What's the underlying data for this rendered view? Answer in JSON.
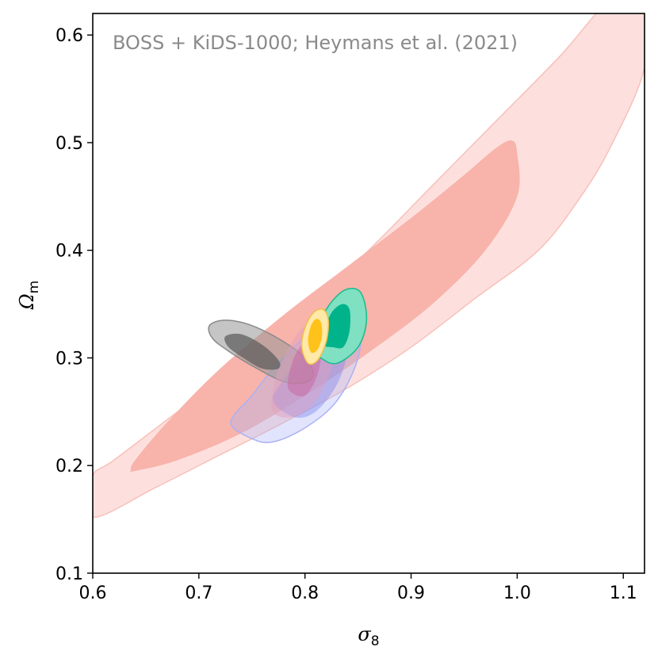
{
  "chart_data": {
    "type": "contour",
    "annotation": "BOSS + KiDS-1000; Heymans et al. (2021)",
    "xlabel": {
      "symbol": "σ",
      "subscript": "8"
    },
    "ylabel": {
      "symbol": "Ω",
      "subscript": "m"
    },
    "xlim": [
      0.6,
      1.12
    ],
    "ylim": [
      0.1,
      0.62
    ],
    "xticks": [
      "0.6",
      "0.7",
      "0.8",
      "0.9",
      "1.0",
      "1.1"
    ],
    "yticks": [
      "0.1",
      "0.2",
      "0.3",
      "0.4",
      "0.5",
      "0.6"
    ],
    "grid": false,
    "series": [
      {
        "color": "#f8b3ab",
        "contours": [
          {
            "level": "outer",
            "fill": "#fde0dd",
            "stroke": "#f8c0b9",
            "points": [
              [
                0.6,
                0.152
              ],
              [
                0.66,
                0.18
              ],
              [
                0.72,
                0.21
              ],
              [
                0.78,
                0.24
              ],
              [
                0.84,
                0.272
              ],
              [
                0.9,
                0.31
              ],
              [
                0.96,
                0.355
              ],
              [
                1.02,
                0.4
              ],
              [
                1.06,
                0.45
              ],
              [
                1.09,
                0.5
              ],
              [
                1.12,
                0.57
              ],
              [
                1.12,
                0.635
              ],
              [
                1.09,
                0.635
              ],
              [
                1.04,
                0.58
              ],
              [
                0.98,
                0.52
              ],
              [
                0.92,
                0.46
              ],
              [
                0.86,
                0.4
              ],
              [
                0.8,
                0.345
              ],
              [
                0.74,
                0.295
              ],
              [
                0.68,
                0.25
              ],
              [
                0.62,
                0.205
              ],
              [
                0.6,
                0.19
              ]
            ]
          },
          {
            "level": "inner",
            "fill": "#f8b3ab",
            "stroke": "none",
            "points": [
              [
                0.64,
                0.195
              ],
              [
                0.68,
                0.205
              ],
              [
                0.74,
                0.23
              ],
              [
                0.8,
                0.265
              ],
              [
                0.86,
                0.305
              ],
              [
                0.92,
                0.35
              ],
              [
                0.97,
                0.4
              ],
              [
                1.0,
                0.45
              ],
              [
                1.0,
                0.49
              ],
              [
                0.995,
                0.502
              ],
              [
                0.98,
                0.495
              ],
              [
                0.95,
                0.47
              ],
              [
                0.9,
                0.43
              ],
              [
                0.84,
                0.385
              ],
              [
                0.78,
                0.34
              ],
              [
                0.72,
                0.29
              ],
              [
                0.67,
                0.24
              ],
              [
                0.64,
                0.205
              ],
              [
                0.636,
                0.196
              ]
            ]
          }
        ]
      },
      {
        "color": "#aab2f5",
        "contours": [
          {
            "level": "outer",
            "fill": "rgba(170,178,245,0.35)",
            "stroke": "#aab2f5",
            "points": [
              [
                0.73,
                0.24
              ],
              [
                0.75,
                0.225
              ],
              [
                0.77,
                0.222
              ],
              [
                0.8,
                0.235
              ],
              [
                0.83,
                0.26
              ],
              [
                0.85,
                0.3
              ],
              [
                0.853,
                0.34
              ],
              [
                0.845,
                0.35
              ],
              [
                0.825,
                0.345
              ],
              [
                0.8,
                0.32
              ],
              [
                0.77,
                0.29
              ],
              [
                0.75,
                0.265
              ]
            ]
          },
          {
            "level": "inner",
            "fill": "rgba(130,140,240,0.45)",
            "stroke": "none",
            "points": [
              [
                0.77,
                0.26
              ],
              [
                0.79,
                0.245
              ],
              [
                0.81,
                0.25
              ],
              [
                0.83,
                0.275
              ],
              [
                0.84,
                0.305
              ],
              [
                0.838,
                0.325
              ],
              [
                0.82,
                0.325
              ],
              [
                0.8,
                0.305
              ],
              [
                0.78,
                0.28
              ]
            ]
          }
        ]
      },
      {
        "color": "#6f6f6f",
        "contours": [
          {
            "level": "outer",
            "fill": "rgba(150,150,150,0.55)",
            "stroke": "#8a8a8a",
            "points": [
              [
                0.71,
                0.33
              ],
              [
                0.725,
                0.335
              ],
              [
                0.75,
                0.33
              ],
              [
                0.78,
                0.315
              ],
              [
                0.8,
                0.3
              ],
              [
                0.808,
                0.285
              ],
              [
                0.8,
                0.277
              ],
              [
                0.78,
                0.278
              ],
              [
                0.755,
                0.29
              ],
              [
                0.73,
                0.305
              ],
              [
                0.713,
                0.318
              ]
            ]
          },
          {
            "level": "inner",
            "fill": "rgba(95,95,95,0.75)",
            "stroke": "none",
            "points": [
              [
                0.725,
                0.32
              ],
              [
                0.74,
                0.322
              ],
              [
                0.76,
                0.312
              ],
              [
                0.775,
                0.298
              ],
              [
                0.775,
                0.29
              ],
              [
                0.76,
                0.29
              ],
              [
                0.745,
                0.298
              ],
              [
                0.728,
                0.31
              ]
            ]
          }
        ]
      },
      {
        "color": "#f2a0b5",
        "contours": [
          {
            "level": "outer",
            "fill": "rgba(224,160,190,0.45)",
            "stroke": "none",
            "points": [
              [
                0.77,
                0.25
              ],
              [
                0.79,
                0.245
              ],
              [
                0.81,
                0.26
              ],
              [
                0.825,
                0.29
              ],
              [
                0.83,
                0.32
              ],
              [
                0.82,
                0.335
              ],
              [
                0.8,
                0.33
              ],
              [
                0.785,
                0.31
              ],
              [
                0.772,
                0.28
              ]
            ]
          },
          {
            "level": "inner",
            "fill": "rgba(200,100,160,0.5)",
            "stroke": "none",
            "points": [
              [
                0.785,
                0.27
              ],
              [
                0.8,
                0.265
              ],
              [
                0.812,
                0.285
              ],
              [
                0.815,
                0.31
              ],
              [
                0.805,
                0.32
              ],
              [
                0.792,
                0.305
              ],
              [
                0.785,
                0.285
              ]
            ]
          }
        ]
      },
      {
        "color": "#1abc8c",
        "contours": [
          {
            "level": "outer",
            "fill": "#7fe0c2",
            "stroke": "#1abc8c",
            "points": [
              [
                0.815,
                0.3
              ],
              [
                0.83,
                0.295
              ],
              [
                0.85,
                0.31
              ],
              [
                0.858,
                0.335
              ],
              [
                0.853,
                0.36
              ],
              [
                0.84,
                0.364
              ],
              [
                0.825,
                0.352
              ],
              [
                0.812,
                0.33
              ],
              [
                0.807,
                0.31
              ]
            ]
          },
          {
            "level": "inner",
            "fill": "#00b38a",
            "stroke": "none",
            "points": [
              [
                0.826,
                0.31
              ],
              [
                0.836,
                0.31
              ],
              [
                0.842,
                0.325
              ],
              [
                0.842,
                0.345
              ],
              [
                0.835,
                0.35
              ],
              [
                0.825,
                0.342
              ],
              [
                0.818,
                0.325
              ],
              [
                0.818,
                0.312
              ]
            ]
          }
        ]
      },
      {
        "color": "#ffd700",
        "contours": [
          {
            "level": "outer",
            "fill": "#ffe9a8",
            "stroke": "#f0c04a",
            "points": [
              [
                0.803,
                0.295
              ],
              [
                0.812,
                0.298
              ],
              [
                0.82,
                0.315
              ],
              [
                0.822,
                0.335
              ],
              [
                0.817,
                0.345
              ],
              [
                0.808,
                0.342
              ],
              [
                0.8,
                0.328
              ],
              [
                0.797,
                0.31
              ]
            ]
          },
          {
            "level": "inner",
            "fill": "#ffc21a",
            "stroke": "none",
            "points": [
              [
                0.806,
                0.305
              ],
              [
                0.812,
                0.308
              ],
              [
                0.816,
                0.32
              ],
              [
                0.815,
                0.333
              ],
              [
                0.81,
                0.336
              ],
              [
                0.805,
                0.328
              ],
              [
                0.803,
                0.315
              ]
            ]
          }
        ]
      }
    ]
  }
}
